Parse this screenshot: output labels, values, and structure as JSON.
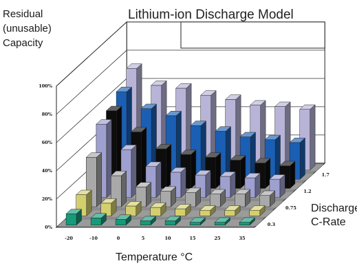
{
  "chart_data": {
    "type": "bar",
    "title": "Lithium-ion Discharge Model",
    "ylabel_lines": [
      "Residual",
      "(unusable)",
      "Capacity"
    ],
    "xlabel": "Temperature °C",
    "zlabel_lines": [
      "Discharge",
      "C-Rate"
    ],
    "y_ticks": [
      "0%",
      "20%",
      "40%",
      "60%",
      "80%",
      "100%"
    ],
    "ylim": [
      0,
      100
    ],
    "categories": [
      "-20",
      "-10",
      "0",
      "5",
      "10",
      "15",
      "25",
      "35"
    ],
    "series": [
      {
        "name": "0.3",
        "color": "#159a7a",
        "values": [
          8,
          5,
          4,
          3,
          3,
          2,
          2,
          2
        ]
      },
      {
        "name": "0.75",
        "color": "#d4cf6e",
        "values": [
          15,
          9,
          7,
          6,
          5,
          4,
          4,
          4
        ]
      },
      {
        "name": "1.2",
        "color": "#a9a9a9",
        "values": [
          35,
          22,
          14,
          11,
          10,
          9,
          9,
          8
        ]
      },
      {
        "name": "1.7",
        "color": "#9ea0d0",
        "values": [
          52,
          34,
          22,
          18,
          16,
          15,
          14,
          13
        ]
      },
      {
        "name": "",
        "color": "#0d0d0d",
        "values": [
          55,
          40,
          28,
          24,
          22,
          20,
          18,
          16
        ]
      },
      {
        "name": "",
        "color": "#1a5fb4",
        "values": [
          62,
          50,
          45,
          38,
          34,
          30,
          28,
          26
        ]
      },
      {
        "name": "",
        "color": "#b8b4d8",
        "values": [
          72,
          60,
          58,
          53,
          50,
          46,
          45,
          43
        ]
      }
    ],
    "grid": true,
    "z_ticks": [
      "0.3",
      "0.75",
      "1.2",
      "1.7"
    ]
  }
}
